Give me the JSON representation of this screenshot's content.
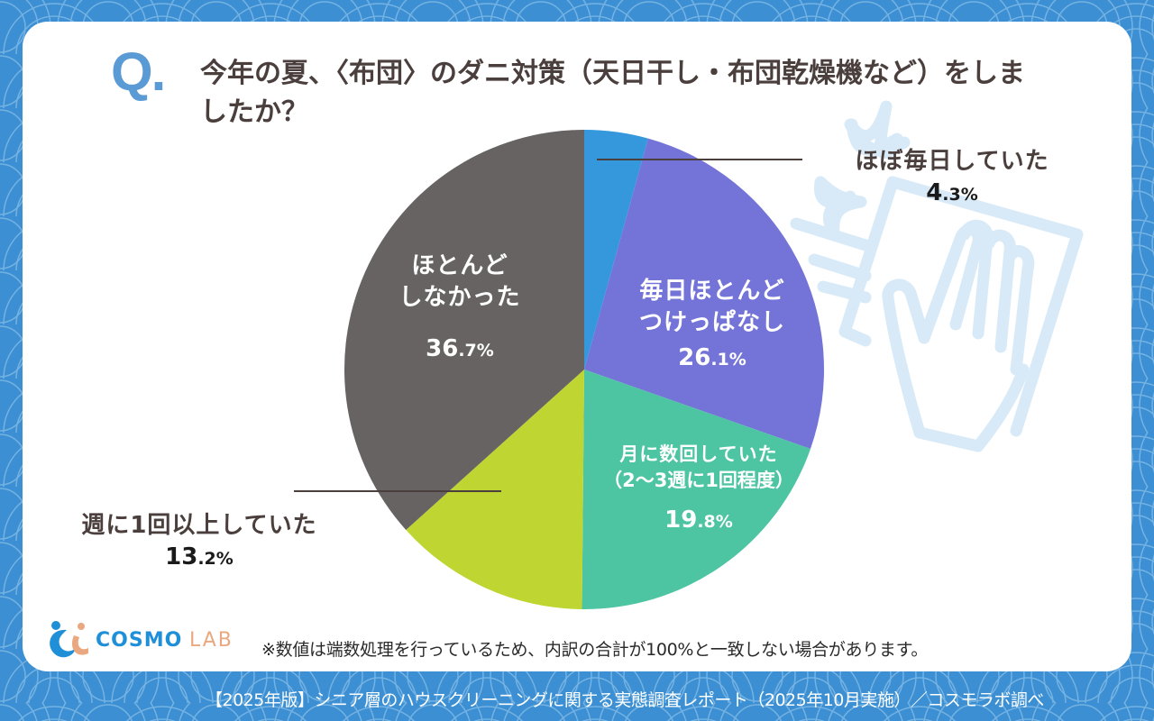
{
  "question": {
    "mark": "Q.",
    "text": "今年の夏、〈布団〉のダニ対策（天日干し・布団乾燥機など）をしましたか？"
  },
  "chart_data": {
    "type": "pie",
    "title": "今年の夏、〈布団〉のダニ対策（天日干し・布団乾燥機など）をしましたか？",
    "start_angle_deg": 0,
    "direction": "clockwise",
    "slices": [
      {
        "label": "ほぼ毎日していた",
        "value": 4.3,
        "color": "#3597dc",
        "label_position": "outside-right"
      },
      {
        "label": "毎日ほとんどつけっぱなし",
        "value": 26.1,
        "color": "#7474d8",
        "label_position": "inside"
      },
      {
        "label": "月に数回していた（2〜3週に1回程度）",
        "value": 19.8,
        "color": "#4dc4a2",
        "label_position": "inside"
      },
      {
        "label": "週に1回以上していた",
        "value": 13.2,
        "color": "#bfd532",
        "label_position": "outside-left"
      },
      {
        "label": "ほとんどしなかった",
        "value": 36.7,
        "color": "#676362",
        "label_position": "inside"
      }
    ],
    "unit": "%"
  },
  "labels": {
    "s0": {
      "line1": "ほぼ毎日していた",
      "int": "4",
      "dec": ".3%"
    },
    "s1": {
      "line1": "毎日ほとんど",
      "line2": "つけっぱなし",
      "int": "26",
      "dec": ".1%"
    },
    "s2": {
      "line1": "月に数回していた",
      "line2": "（2〜3週に1回程度）",
      "int": "19",
      "dec": ".8%"
    },
    "s3": {
      "line1": "週に1回以上していた",
      "int": "13",
      "dec": ".2%"
    },
    "s4": {
      "line1": "ほとんど",
      "line2": "しなかった",
      "int": "36",
      "dec": ".7%"
    }
  },
  "note": "※数値は端数処理を行っているため、内訳の合計が100%と一致しない場合があります。",
  "footer": "【2025年版】シニア層のハウスクリーニングに関する実態調査レポート（2025年10月実施）／コスモラボ調べ",
  "logo": {
    "part1": "COSMO",
    "part2": "LAB"
  },
  "colors": {
    "background": "#3b8fd2",
    "title_text": "#4a3f3c",
    "q_mark": "#5b9bd5",
    "illustration": "#d8eaf7"
  }
}
